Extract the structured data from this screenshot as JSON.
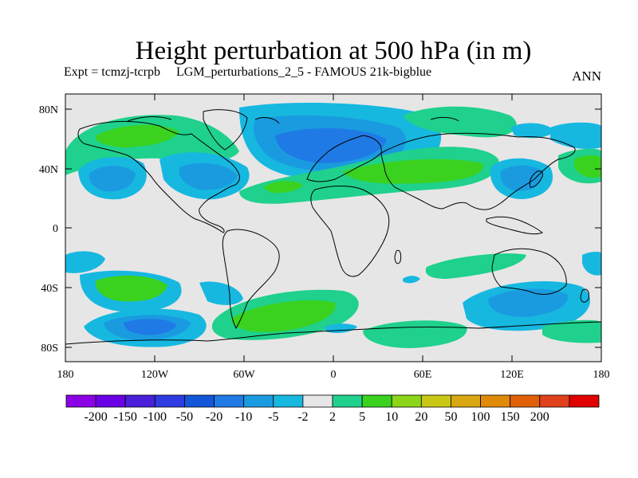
{
  "title": "Height perturbation at 500 hPa (in m)",
  "subtitle": "Expt = tcmzj-tcrpb     LGM_perturbations_2_5 - FAMOUS 21k-bigblue",
  "season": "ANN",
  "lat_ticks": [
    "80N",
    "40N",
    "0",
    "40S",
    "80S"
  ],
  "lon_ticks": [
    "180",
    "120W",
    "60W",
    "0",
    "60E",
    "120E",
    "180"
  ],
  "colorbar": {
    "colors": [
      "#8c00e6",
      "#6a00e6",
      "#4a1fd9",
      "#2f3ae0",
      "#1456d9",
      "#1f7ae6",
      "#1a9be0",
      "#16b8e0",
      "#e6e6e6",
      "#1fd18c",
      "#3ad21f",
      "#8cd61a",
      "#c8c814",
      "#d9a712",
      "#e08a0a",
      "#e0600a",
      "#e0401a",
      "#e00000"
    ],
    "labels": [
      "-200",
      "-150",
      "-100",
      "-50",
      "-20",
      "-10",
      "-5",
      "-2",
      "2",
      "5",
      "10",
      "20",
      "50",
      "100",
      "150",
      "200"
    ]
  },
  "colors": {
    "background": "#e6e6e6",
    "positive_light": "#1fd18c",
    "positive_mid": "#3ad21f",
    "negative_light": "#16b8e0",
    "negative_mid": "#1a9be0",
    "negative_dark": "#1f7ae6"
  }
}
